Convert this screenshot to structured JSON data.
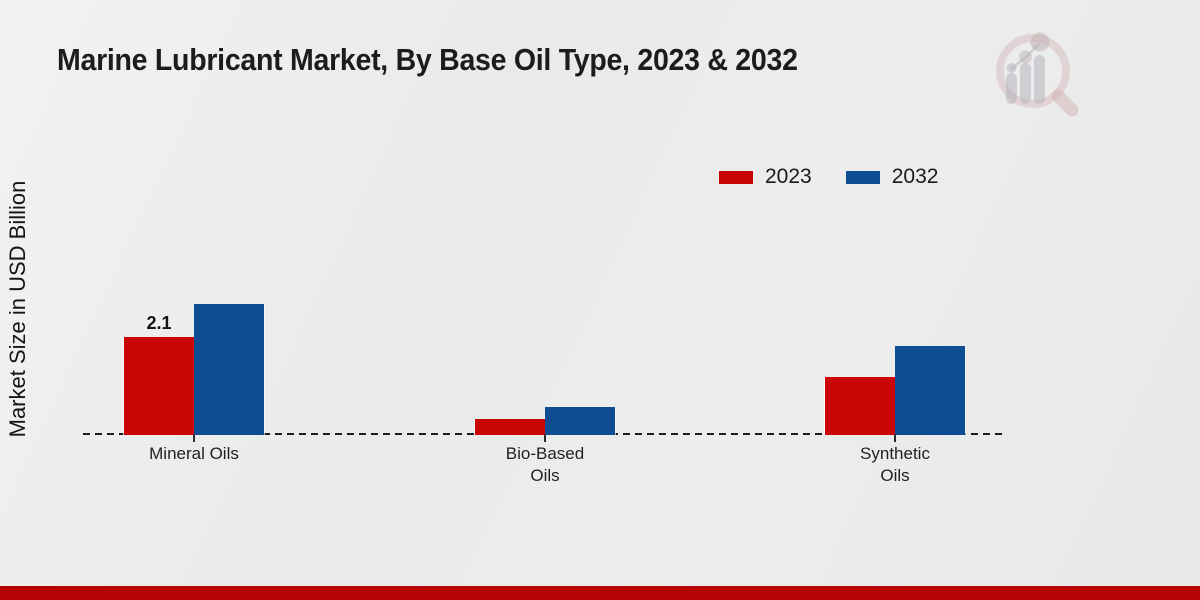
{
  "chart_data": {
    "type": "bar",
    "title": "Marine Lubricant Market, By Base Oil Type, 2023 & 2032",
    "categories": [
      "Mineral Oils",
      "Bio-Based Oils",
      "Synthetic Oils"
    ],
    "series": [
      {
        "name": "2023",
        "color": "#c90505",
        "values": [
          2.1,
          0.35,
          1.25
        ],
        "data_labels": [
          "2.1",
          "",
          ""
        ]
      },
      {
        "name": "2032",
        "color": "#0e4d92",
        "values": [
          2.8,
          0.6,
          1.9
        ],
        "data_labels": [
          "",
          "",
          ""
        ]
      }
    ],
    "xlabel": "",
    "ylabel": "Market Size in USD Billion",
    "grid": false,
    "y_axis_ticks_visible": false,
    "legend_position": "top-right"
  },
  "legend": {
    "items": [
      {
        "label": "2023",
        "color": "#c90505"
      },
      {
        "label": "2032",
        "color": "#0e4d92"
      }
    ]
  },
  "icons": {
    "watermark": "bar-chart-magnifier-logo"
  },
  "colors": {
    "series_2023": "#c90505",
    "series_2032": "#0e4d92",
    "footer_bar": "#b50505",
    "background": "#ebecec"
  }
}
